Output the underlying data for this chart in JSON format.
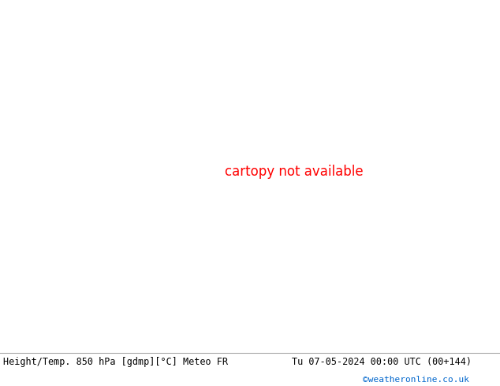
{
  "title_left": "Height/Temp. 850 hPa [gdmp][°C] Meteo FR",
  "title_right": "Tu 07-05-2024 00:00 UTC (00+144)",
  "credit": "©weatheronline.co.uk",
  "credit_color": "#0066cc",
  "footer_bg": "#f0f0f0",
  "map_bg": "#e8e8e8",
  "land_green": "#c8eaa0",
  "land_gray": "#b8b8b8",
  "sea_color": "#e0e0e0",
  "fig_w": 6.34,
  "fig_h": 4.9,
  "dpi": 100,
  "lon_min": -45,
  "lon_max": 55,
  "lat_min": 27,
  "lat_max": 75,
  "contours": {
    "black_geopotential": {
      "color": "#000000",
      "linewidth": 1.5
    },
    "temp_cyan": {
      "color": "#00cccc",
      "linewidth": 1.8,
      "dash": [
        8,
        4
      ]
    },
    "temp_teal": {
      "color": "#009988",
      "linewidth": 1.8,
      "dash": [
        8,
        4
      ]
    },
    "temp_green": {
      "color": "#88bb00",
      "linewidth": 1.8,
      "dash": [
        8,
        4
      ]
    },
    "temp_orange": {
      "color": "#ffaa00",
      "linewidth": 1.8,
      "dash": [
        8,
        4
      ]
    },
    "temp_orange2": {
      "color": "#ff8800",
      "linewidth": 2.0,
      "dash": [
        8,
        4
      ]
    },
    "temp_red": {
      "color": "#ff2020",
      "linewidth": 2.2,
      "dash": [
        8,
        4
      ]
    }
  }
}
